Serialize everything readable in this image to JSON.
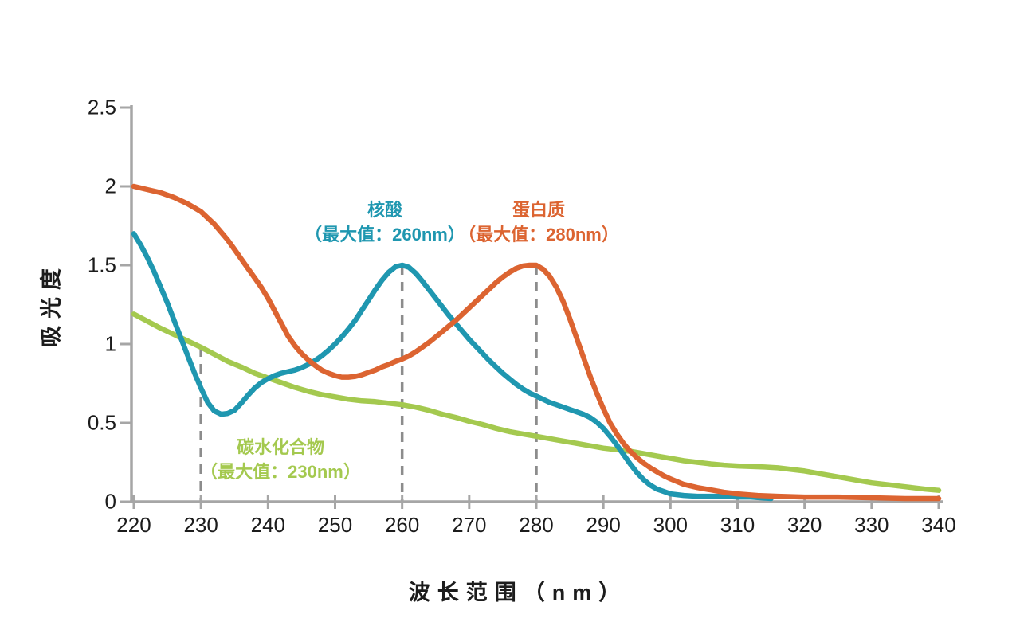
{
  "page": {
    "background": "#ffffff"
  },
  "chart_data": {
    "type": "line",
    "title": "",
    "xlabel": "波长范围（nm）",
    "ylabel": "吸光度",
    "xlim": [
      220,
      340
    ],
    "ylim": [
      0,
      2.5
    ],
    "x_ticks": [
      220,
      230,
      240,
      250,
      260,
      270,
      280,
      290,
      300,
      310,
      320,
      330,
      340
    ],
    "y_ticks": [
      0,
      0.5,
      1,
      1.5,
      2,
      2.5
    ],
    "grid": false,
    "legend_position": "labels-on-chart",
    "axis_color": "#a6a6a6",
    "tick_label_color": "#1c1c1c",
    "dashed_line_color": "#8c8c8c",
    "draw_order": [
      2,
      0,
      1
    ],
    "series": [
      {
        "name": "核酸",
        "max_label": "（最大值：260nm）",
        "peak_nm": 260,
        "peak_value": 1.5,
        "color": "#1f97b0",
        "points": [
          [
            220,
            1.7
          ],
          [
            221,
            1.63
          ],
          [
            222,
            1.55
          ],
          [
            223,
            1.46
          ],
          [
            224,
            1.36
          ],
          [
            225,
            1.26
          ],
          [
            226,
            1.15
          ],
          [
            227,
            1.04
          ],
          [
            228,
            0.93
          ],
          [
            229,
            0.82
          ],
          [
            230,
            0.72
          ],
          [
            231,
            0.63
          ],
          [
            232,
            0.575
          ],
          [
            233,
            0.555
          ],
          [
            234,
            0.56
          ],
          [
            235,
            0.58
          ],
          [
            236,
            0.625
          ],
          [
            237,
            0.675
          ],
          [
            238,
            0.72
          ],
          [
            239,
            0.755
          ],
          [
            240,
            0.78
          ],
          [
            241,
            0.8
          ],
          [
            242,
            0.815
          ],
          [
            243,
            0.825
          ],
          [
            244,
            0.835
          ],
          [
            245,
            0.85
          ],
          [
            246,
            0.87
          ],
          [
            247,
            0.895
          ],
          [
            248,
            0.925
          ],
          [
            249,
            0.96
          ],
          [
            250,
            1.0
          ],
          [
            251,
            1.045
          ],
          [
            252,
            1.095
          ],
          [
            253,
            1.15
          ],
          [
            254,
            1.215
          ],
          [
            255,
            1.28
          ],
          [
            256,
            1.345
          ],
          [
            257,
            1.405
          ],
          [
            258,
            1.455
          ],
          [
            259,
            1.49
          ],
          [
            260,
            1.5
          ],
          [
            261,
            1.487
          ],
          [
            262,
            1.45
          ],
          [
            263,
            1.4
          ],
          [
            264,
            1.345
          ],
          [
            265,
            1.29
          ],
          [
            266,
            1.235
          ],
          [
            267,
            1.18
          ],
          [
            268,
            1.13
          ],
          [
            269,
            1.08
          ],
          [
            270,
            1.03
          ],
          [
            271,
            0.985
          ],
          [
            272,
            0.94
          ],
          [
            273,
            0.895
          ],
          [
            274,
            0.855
          ],
          [
            275,
            0.815
          ],
          [
            276,
            0.78
          ],
          [
            277,
            0.745
          ],
          [
            278,
            0.715
          ],
          [
            279,
            0.69
          ],
          [
            280,
            0.67
          ],
          [
            281,
            0.65
          ],
          [
            282,
            0.63
          ],
          [
            283,
            0.615
          ],
          [
            284,
            0.6
          ],
          [
            285,
            0.585
          ],
          [
            286,
            0.57
          ],
          [
            287,
            0.555
          ],
          [
            288,
            0.535
          ],
          [
            289,
            0.505
          ],
          [
            290,
            0.465
          ],
          [
            291,
            0.415
          ],
          [
            292,
            0.36
          ],
          [
            293,
            0.3
          ],
          [
            294,
            0.24
          ],
          [
            295,
            0.185
          ],
          [
            296,
            0.14
          ],
          [
            297,
            0.105
          ],
          [
            298,
            0.08
          ],
          [
            299,
            0.065
          ],
          [
            300,
            0.05
          ],
          [
            302,
            0.04
          ],
          [
            304,
            0.035
          ],
          [
            306,
            0.035
          ],
          [
            308,
            0.035
          ],
          [
            310,
            0.03
          ],
          [
            312,
            0.03
          ],
          [
            315,
            0.02
          ]
        ]
      },
      {
        "name": "蛋白质",
        "max_label": "（最大值：280nm）",
        "peak_nm": 280,
        "peak_value": 1.5,
        "color": "#dc6431",
        "points": [
          [
            220,
            2.0
          ],
          [
            222,
            1.98
          ],
          [
            224,
            1.96
          ],
          [
            226,
            1.93
          ],
          [
            228,
            1.89
          ],
          [
            230,
            1.84
          ],
          [
            231,
            1.8
          ],
          [
            232,
            1.76
          ],
          [
            233,
            1.71
          ],
          [
            234,
            1.66
          ],
          [
            235,
            1.6
          ],
          [
            236,
            1.54
          ],
          [
            237,
            1.48
          ],
          [
            238,
            1.42
          ],
          [
            239,
            1.36
          ],
          [
            240,
            1.29
          ],
          [
            241,
            1.21
          ],
          [
            242,
            1.13
          ],
          [
            243,
            1.05
          ],
          [
            244,
            0.99
          ],
          [
            245,
            0.94
          ],
          [
            246,
            0.9
          ],
          [
            247,
            0.865
          ],
          [
            248,
            0.835
          ],
          [
            249,
            0.815
          ],
          [
            250,
            0.8
          ],
          [
            251,
            0.79
          ],
          [
            252,
            0.79
          ],
          [
            253,
            0.795
          ],
          [
            254,
            0.805
          ],
          [
            255,
            0.82
          ],
          [
            256,
            0.835
          ],
          [
            257,
            0.855
          ],
          [
            258,
            0.87
          ],
          [
            259,
            0.89
          ],
          [
            260,
            0.905
          ],
          [
            261,
            0.925
          ],
          [
            262,
            0.95
          ],
          [
            263,
            0.98
          ],
          [
            264,
            1.01
          ],
          [
            265,
            1.045
          ],
          [
            266,
            1.08
          ],
          [
            267,
            1.115
          ],
          [
            268,
            1.15
          ],
          [
            269,
            1.19
          ],
          [
            270,
            1.23
          ],
          [
            271,
            1.27
          ],
          [
            272,
            1.31
          ],
          [
            273,
            1.35
          ],
          [
            274,
            1.39
          ],
          [
            275,
            1.425
          ],
          [
            276,
            1.455
          ],
          [
            277,
            1.48
          ],
          [
            278,
            1.495
          ],
          [
            279,
            1.5
          ],
          [
            280,
            1.5
          ],
          [
            281,
            1.475
          ],
          [
            282,
            1.43
          ],
          [
            283,
            1.36
          ],
          [
            284,
            1.27
          ],
          [
            285,
            1.16
          ],
          [
            286,
            1.04
          ],
          [
            287,
            0.92
          ],
          [
            288,
            0.8
          ],
          [
            289,
            0.69
          ],
          [
            290,
            0.59
          ],
          [
            291,
            0.5
          ],
          [
            292,
            0.43
          ],
          [
            293,
            0.37
          ],
          [
            294,
            0.32
          ],
          [
            295,
            0.28
          ],
          [
            296,
            0.245
          ],
          [
            297,
            0.215
          ],
          [
            298,
            0.19
          ],
          [
            299,
            0.165
          ],
          [
            300,
            0.145
          ],
          [
            302,
            0.11
          ],
          [
            304,
            0.09
          ],
          [
            306,
            0.075
          ],
          [
            308,
            0.06
          ],
          [
            310,
            0.05
          ],
          [
            313,
            0.04
          ],
          [
            316,
            0.035
          ],
          [
            320,
            0.03
          ],
          [
            325,
            0.03
          ],
          [
            330,
            0.025
          ],
          [
            335,
            0.02
          ],
          [
            340,
            0.02
          ]
        ]
      },
      {
        "name": "碳水化合物",
        "max_label": "（最大值：230nm）",
        "peak_nm": 230,
        "peak_value": 0.98,
        "color": "#a4c94f",
        "points": [
          [
            220,
            1.19
          ],
          [
            222,
            1.145
          ],
          [
            224,
            1.1
          ],
          [
            226,
            1.06
          ],
          [
            228,
            1.02
          ],
          [
            230,
            0.98
          ],
          [
            232,
            0.935
          ],
          [
            234,
            0.89
          ],
          [
            236,
            0.855
          ],
          [
            238,
            0.815
          ],
          [
            240,
            0.785
          ],
          [
            242,
            0.755
          ],
          [
            244,
            0.725
          ],
          [
            246,
            0.7
          ],
          [
            248,
            0.68
          ],
          [
            250,
            0.665
          ],
          [
            252,
            0.65
          ],
          [
            254,
            0.64
          ],
          [
            256,
            0.635
          ],
          [
            258,
            0.625
          ],
          [
            260,
            0.615
          ],
          [
            262,
            0.6
          ],
          [
            264,
            0.58
          ],
          [
            266,
            0.555
          ],
          [
            268,
            0.535
          ],
          [
            270,
            0.51
          ],
          [
            272,
            0.49
          ],
          [
            274,
            0.465
          ],
          [
            276,
            0.445
          ],
          [
            278,
            0.43
          ],
          [
            280,
            0.415
          ],
          [
            282,
            0.4
          ],
          [
            284,
            0.385
          ],
          [
            286,
            0.37
          ],
          [
            288,
            0.355
          ],
          [
            290,
            0.34
          ],
          [
            292,
            0.33
          ],
          [
            294,
            0.32
          ],
          [
            296,
            0.305
          ],
          [
            298,
            0.29
          ],
          [
            300,
            0.275
          ],
          [
            302,
            0.26
          ],
          [
            304,
            0.25
          ],
          [
            306,
            0.24
          ],
          [
            308,
            0.232
          ],
          [
            310,
            0.227
          ],
          [
            312,
            0.223
          ],
          [
            314,
            0.22
          ],
          [
            316,
            0.215
          ],
          [
            318,
            0.205
          ],
          [
            320,
            0.195
          ],
          [
            322,
            0.18
          ],
          [
            324,
            0.165
          ],
          [
            326,
            0.15
          ],
          [
            328,
            0.135
          ],
          [
            330,
            0.12
          ],
          [
            332,
            0.11
          ],
          [
            334,
            0.1
          ],
          [
            336,
            0.09
          ],
          [
            338,
            0.08
          ],
          [
            340,
            0.072
          ]
        ]
      }
    ],
    "dashed_lines": [
      {
        "x": 230,
        "y_top": 0.98
      },
      {
        "x": 260,
        "y_top": 1.5
      },
      {
        "x": 280,
        "y_top": 1.5
      }
    ]
  }
}
